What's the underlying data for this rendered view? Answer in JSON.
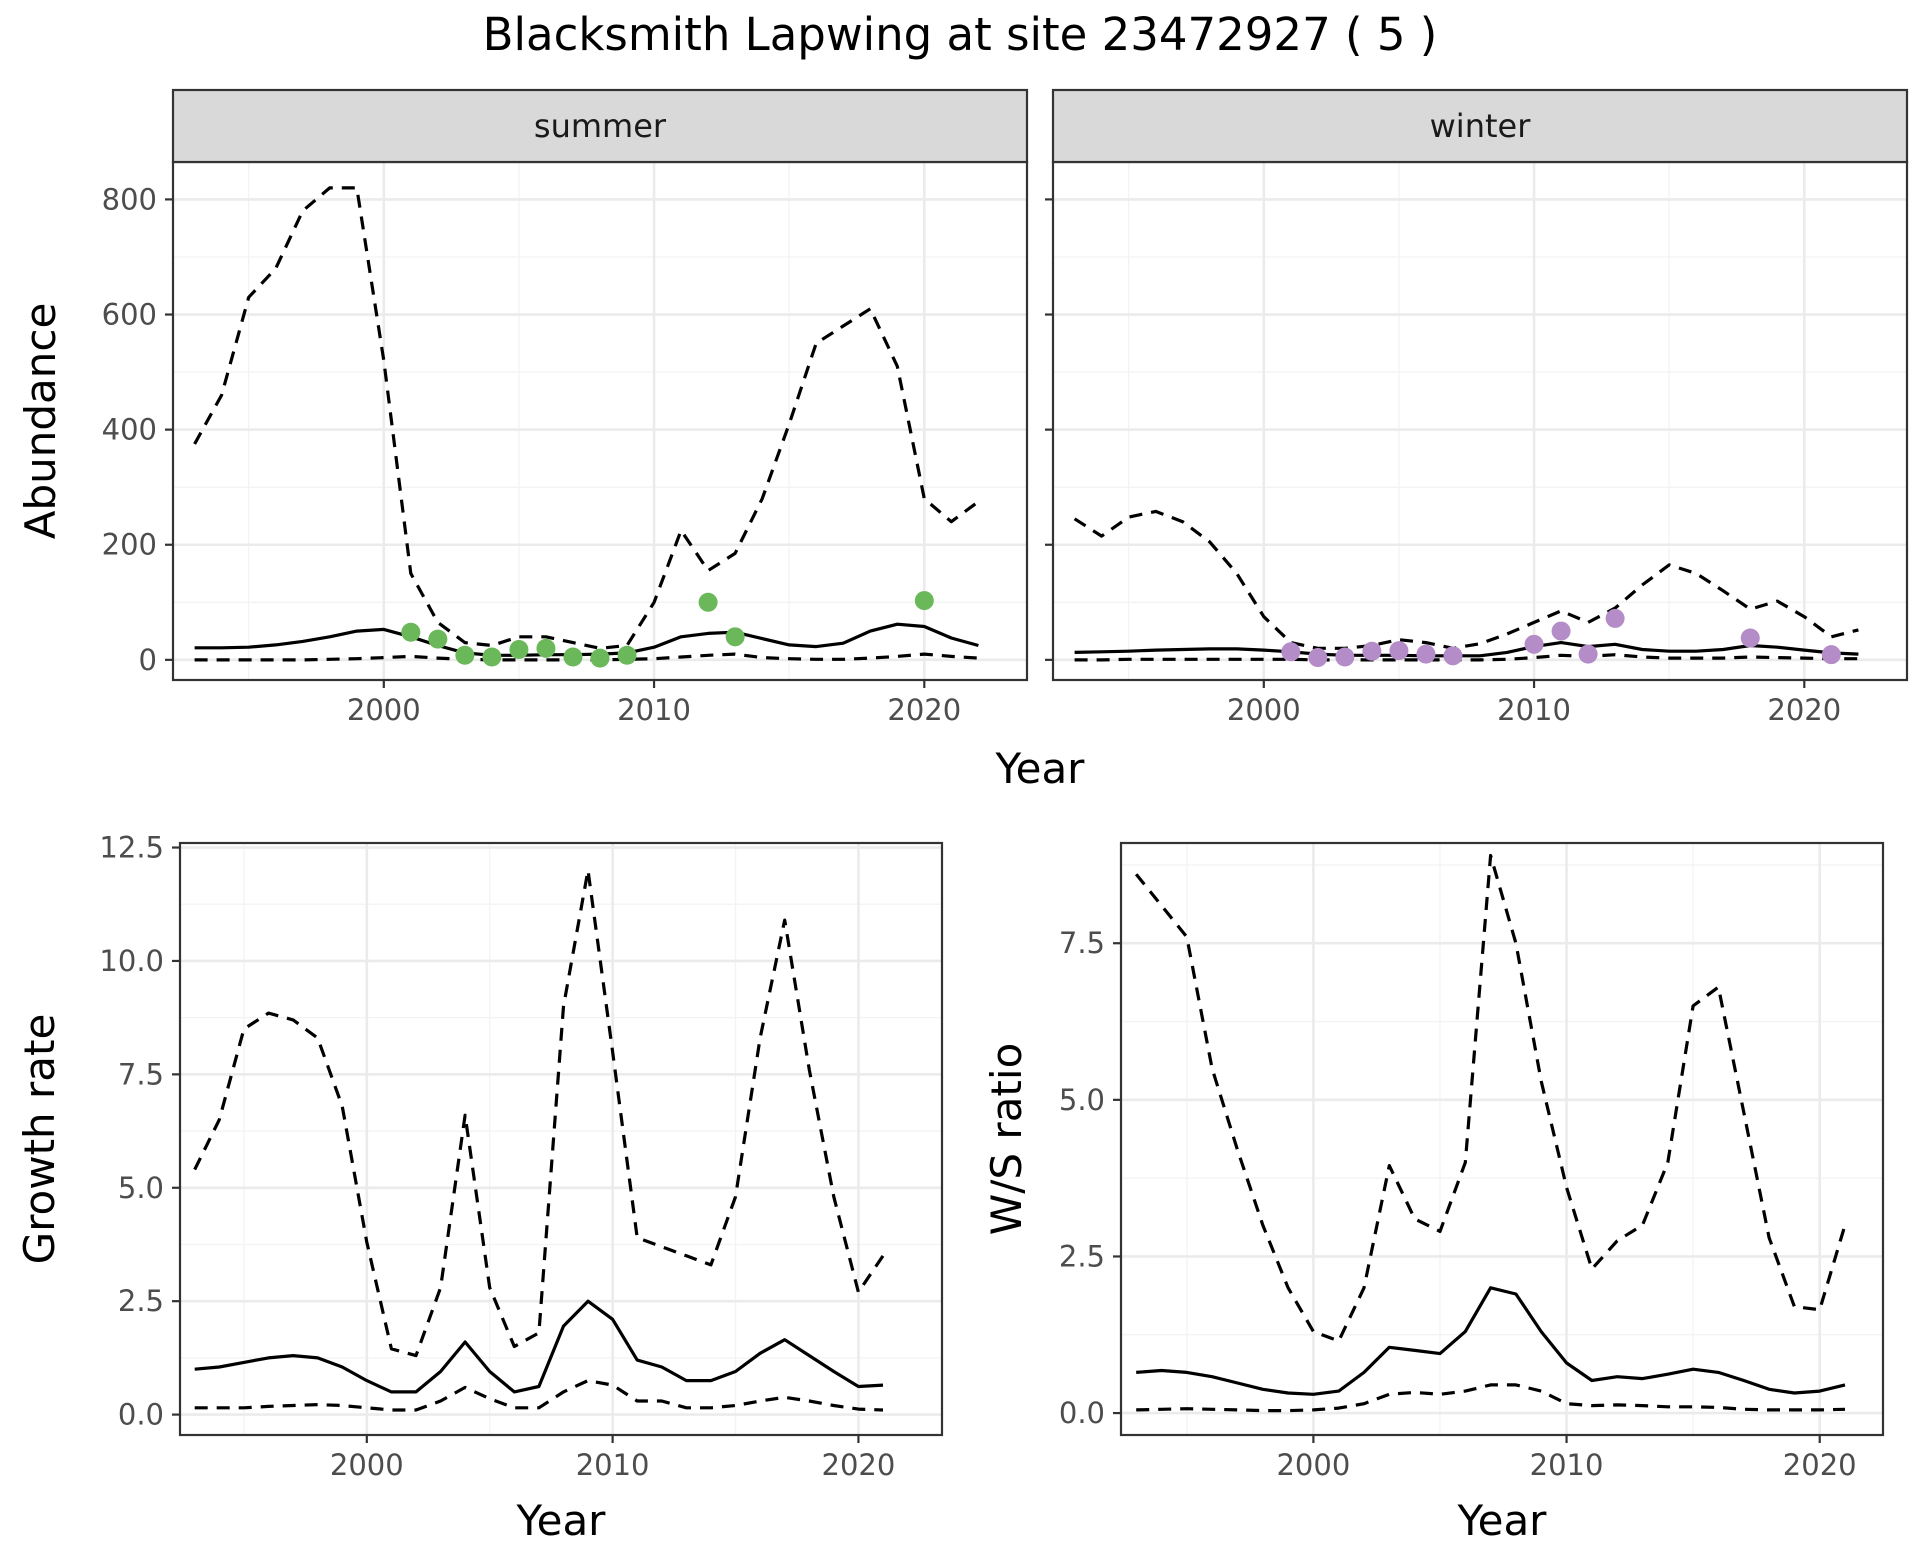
{
  "page_title": "Blacksmith Lapwing at site 23472927 ( 5 )",
  "colors": {
    "summer_points": "#6ab85a",
    "winter_points": "#b48cc8"
  },
  "chart_data": [
    {
      "id": "abundance-summer",
      "type": "line",
      "facet_label": "summer",
      "shared_xlabel": "Year",
      "ylabel": "Abundance",
      "xlim": [
        1992.2,
        2023.8
      ],
      "ylim": [
        -35,
        865
      ],
      "xticks": [
        2000,
        2010,
        2020
      ],
      "yticks": [
        0,
        200,
        400,
        600,
        800
      ],
      "ytick_labels": [
        "0",
        "200",
        "400",
        "600",
        "800"
      ],
      "grid": true,
      "series": [
        {
          "style": "solid",
          "x": [
            1993,
            1994,
            1995,
            1996,
            1997,
            1998,
            1999,
            2000,
            2001,
            2002,
            2003,
            2004,
            2005,
            2006,
            2007,
            2008,
            2009,
            2010,
            2011,
            2012,
            2013,
            2014,
            2015,
            2016,
            2017,
            2018,
            2019,
            2020,
            2021,
            2022
          ],
          "values": [
            21,
            21,
            22,
            26,
            32,
            40,
            50,
            53,
            40,
            25,
            12,
            8,
            8,
            9,
            9,
            10,
            12,
            22,
            40,
            46,
            48,
            37,
            26,
            23,
            29,
            50,
            62,
            58,
            38,
            25
          ]
        },
        {
          "style": "dashed",
          "x": [
            1993,
            1994,
            1995,
            1996,
            1997,
            1998,
            1999,
            2000,
            2001,
            2002,
            2003,
            2004,
            2005,
            2006,
            2007,
            2008,
            2009,
            2010,
            2011,
            2012,
            2013,
            2014,
            2015,
            2016,
            2017,
            2018,
            2019,
            2020,
            2021,
            2022
          ],
          "values": [
            375,
            460,
            630,
            680,
            780,
            820,
            820,
            520,
            150,
            65,
            30,
            25,
            40,
            40,
            30,
            20,
            25,
            100,
            225,
            155,
            185,
            280,
            410,
            550,
            580,
            610,
            510,
            280,
            240,
            275
          ]
        },
        {
          "style": "dashed",
          "x": [
            1993,
            1994,
            1995,
            1996,
            1997,
            1998,
            1999,
            2000,
            2001,
            2002,
            2003,
            2004,
            2005,
            2006,
            2007,
            2008,
            2009,
            2010,
            2011,
            2012,
            2013,
            2014,
            2015,
            2016,
            2017,
            2018,
            2019,
            2020,
            2021,
            2022
          ],
          "values": [
            0,
            0,
            0,
            0,
            0,
            1,
            2,
            4,
            6,
            3,
            1,
            0,
            0,
            0,
            0,
            0,
            1,
            2,
            5,
            8,
            10,
            4,
            2,
            1,
            1,
            3,
            6,
            10,
            6,
            3
          ]
        }
      ],
      "points": {
        "x": [
          2001,
          2002,
          2003,
          2004,
          2005,
          2006,
          2007,
          2008,
          2009,
          2012,
          2013,
          2020
        ],
        "values": [
          48,
          36,
          8,
          5,
          18,
          20,
          5,
          3,
          8,
          100,
          40,
          103
        ]
      }
    },
    {
      "id": "abundance-winter",
      "type": "line",
      "facet_label": "winter",
      "ylabel": "",
      "xlim": [
        1992.2,
        2023.8
      ],
      "ylim": [
        -35,
        865
      ],
      "xticks": [
        2000,
        2010,
        2020
      ],
      "yticks": [
        0,
        200,
        400,
        600,
        800
      ],
      "ytick_labels": [],
      "grid": true,
      "series": [
        {
          "style": "solid",
          "x": [
            1993,
            1994,
            1995,
            1996,
            1997,
            1998,
            1999,
            2000,
            2001,
            2002,
            2003,
            2004,
            2005,
            2006,
            2007,
            2008,
            2009,
            2010,
            2011,
            2012,
            2013,
            2014,
            2015,
            2016,
            2017,
            2018,
            2019,
            2020,
            2021,
            2022
          ],
          "values": [
            13,
            14,
            15,
            17,
            18,
            19,
            19,
            17,
            14,
            10,
            8,
            8,
            8,
            7,
            7,
            7,
            13,
            23,
            30,
            23,
            27,
            18,
            15,
            15,
            18,
            25,
            22,
            17,
            12,
            10
          ]
        },
        {
          "style": "dashed",
          "x": [
            1993,
            1994,
            1995,
            1996,
            1997,
            1998,
            1999,
            2000,
            2001,
            2002,
            2003,
            2004,
            2005,
            2006,
            2007,
            2008,
            2009,
            2010,
            2011,
            2012,
            2013,
            2014,
            2015,
            2016,
            2017,
            2018,
            2019,
            2020,
            2021,
            2022
          ],
          "values": [
            245,
            215,
            248,
            258,
            240,
            205,
            150,
            75,
            30,
            20,
            20,
            25,
            35,
            30,
            20,
            28,
            45,
            65,
            85,
            65,
            90,
            130,
            165,
            150,
            120,
            88,
            102,
            75,
            40,
            52
          ]
        },
        {
          "style": "dashed",
          "x": [
            1993,
            1994,
            1995,
            1996,
            1997,
            1998,
            1999,
            2000,
            2001,
            2002,
            2003,
            2004,
            2005,
            2006,
            2007,
            2008,
            2009,
            2010,
            2011,
            2012,
            2013,
            2014,
            2015,
            2016,
            2017,
            2018,
            2019,
            2020,
            2021,
            2022
          ],
          "values": [
            0,
            0,
            1,
            1,
            1,
            1,
            1,
            1,
            1,
            0,
            0,
            0,
            0,
            0,
            0,
            0,
            1,
            4,
            8,
            6,
            9,
            5,
            3,
            3,
            3,
            5,
            4,
            3,
            2,
            2
          ]
        }
      ],
      "points": {
        "x": [
          2001,
          2002,
          2003,
          2004,
          2005,
          2006,
          2007,
          2010,
          2011,
          2012,
          2013,
          2018,
          2021
        ],
        "values": [
          14,
          4,
          5,
          15,
          16,
          10,
          7,
          27,
          50,
          10,
          72,
          38,
          9
        ]
      }
    },
    {
      "id": "growth-rate",
      "type": "line",
      "xlabel": "Year",
      "ylabel": "Growth rate",
      "xlim": [
        1992.4,
        2023.4
      ],
      "ylim": [
        -0.45,
        12.6
      ],
      "xticks": [
        2000,
        2010,
        2020
      ],
      "yticks": [
        0,
        2.5,
        5,
        7.5,
        10,
        12.5
      ],
      "ytick_labels": [
        "0.0",
        "2.5",
        "5.0",
        "7.5",
        "10.0",
        "12.5"
      ],
      "grid": true,
      "series": [
        {
          "style": "solid",
          "x": [
            1993,
            1994,
            1995,
            1996,
            1997,
            1998,
            1999,
            2000,
            2001,
            2002,
            2003,
            2004,
            2005,
            2006,
            2007,
            2008,
            2009,
            2010,
            2011,
            2012,
            2013,
            2014,
            2015,
            2016,
            2017,
            2018,
            2019,
            2020,
            2021
          ],
          "values": [
            1.0,
            1.05,
            1.15,
            1.25,
            1.3,
            1.25,
            1.05,
            0.75,
            0.5,
            0.5,
            0.95,
            1.6,
            0.95,
            0.5,
            0.62,
            1.95,
            2.5,
            2.1,
            1.2,
            1.05,
            0.75,
            0.75,
            0.95,
            1.35,
            1.65,
            1.3,
            0.95,
            0.62,
            0.65
          ]
        },
        {
          "style": "dashed",
          "x": [
            1993,
            1994,
            1995,
            1996,
            1997,
            1998,
            1999,
            2000,
            2001,
            2002,
            2003,
            2004,
            2005,
            2006,
            2007,
            2008,
            2009,
            2010,
            2011,
            2012,
            2013,
            2014,
            2015,
            2016,
            2017,
            2018,
            2019,
            2020,
            2021
          ],
          "values": [
            5.4,
            6.5,
            8.5,
            8.85,
            8.7,
            8.3,
            6.8,
            3.8,
            1.45,
            1.3,
            2.8,
            6.6,
            2.8,
            1.5,
            1.8,
            9.0,
            12.0,
            8.0,
            3.9,
            3.7,
            3.5,
            3.3,
            4.8,
            8.3,
            10.9,
            7.6,
            4.8,
            2.7,
            3.5
          ]
        },
        {
          "style": "dashed",
          "x": [
            1993,
            1994,
            1995,
            1996,
            1997,
            1998,
            1999,
            2000,
            2001,
            2002,
            2003,
            2004,
            2005,
            2006,
            2007,
            2008,
            2009,
            2010,
            2011,
            2012,
            2013,
            2014,
            2015,
            2016,
            2017,
            2018,
            2019,
            2020,
            2021
          ],
          "values": [
            0.15,
            0.15,
            0.15,
            0.18,
            0.2,
            0.22,
            0.2,
            0.15,
            0.1,
            0.1,
            0.3,
            0.6,
            0.35,
            0.15,
            0.15,
            0.5,
            0.75,
            0.65,
            0.3,
            0.3,
            0.15,
            0.15,
            0.2,
            0.3,
            0.38,
            0.3,
            0.2,
            0.12,
            0.1
          ]
        }
      ]
    },
    {
      "id": "ws-ratio",
      "type": "line",
      "xlabel": "Year",
      "ylabel": "W/S ratio",
      "xlim": [
        1992.4,
        2022.5
      ],
      "ylim": [
        -0.35,
        9.1
      ],
      "xticks": [
        2000,
        2010,
        2020
      ],
      "yticks": [
        0,
        2.5,
        5,
        7.5
      ],
      "ytick_labels": [
        "0.0",
        "2.5",
        "5.0",
        "7.5"
      ],
      "grid": true,
      "series": [
        {
          "style": "solid",
          "x": [
            1993,
            1994,
            1995,
            1996,
            1997,
            1998,
            1999,
            2000,
            2001,
            2002,
            2003,
            2004,
            2005,
            2006,
            2007,
            2008,
            2009,
            2010,
            2011,
            2012,
            2013,
            2014,
            2015,
            2016,
            2017,
            2018,
            2019,
            2020,
            2021
          ],
          "values": [
            0.65,
            0.68,
            0.65,
            0.58,
            0.48,
            0.38,
            0.32,
            0.3,
            0.35,
            0.65,
            1.05,
            1.0,
            0.95,
            1.3,
            2.0,
            1.9,
            1.3,
            0.8,
            0.52,
            0.58,
            0.55,
            0.62,
            0.7,
            0.65,
            0.52,
            0.38,
            0.32,
            0.35,
            0.45
          ]
        },
        {
          "style": "dashed",
          "x": [
            1993,
            1994,
            1995,
            1996,
            1997,
            1998,
            1999,
            2000,
            2001,
            2002,
            2003,
            2004,
            2005,
            2006,
            2007,
            2008,
            2009,
            2010,
            2011,
            2012,
            2013,
            2014,
            2015,
            2016,
            2017,
            2018,
            2019,
            2020,
            2021
          ],
          "values": [
            8.6,
            8.1,
            7.6,
            5.5,
            4.2,
            3.0,
            2.0,
            1.3,
            1.15,
            2.0,
            3.95,
            3.1,
            2.9,
            4.0,
            8.9,
            7.5,
            5.3,
            3.6,
            2.3,
            2.75,
            3.0,
            4.0,
            6.5,
            6.8,
            4.8,
            2.8,
            1.7,
            1.65,
            3.0
          ]
        },
        {
          "style": "dashed",
          "x": [
            1993,
            1994,
            1995,
            1996,
            1997,
            1998,
            1999,
            2000,
            2001,
            2002,
            2003,
            2004,
            2005,
            2006,
            2007,
            2008,
            2009,
            2010,
            2011,
            2012,
            2013,
            2014,
            2015,
            2016,
            2017,
            2018,
            2019,
            2020,
            2021
          ],
          "values": [
            0.05,
            0.06,
            0.07,
            0.06,
            0.05,
            0.04,
            0.04,
            0.05,
            0.08,
            0.15,
            0.3,
            0.33,
            0.3,
            0.35,
            0.45,
            0.45,
            0.35,
            0.15,
            0.12,
            0.13,
            0.12,
            0.1,
            0.1,
            0.09,
            0.06,
            0.05,
            0.05,
            0.05,
            0.06
          ]
        }
      ]
    }
  ]
}
